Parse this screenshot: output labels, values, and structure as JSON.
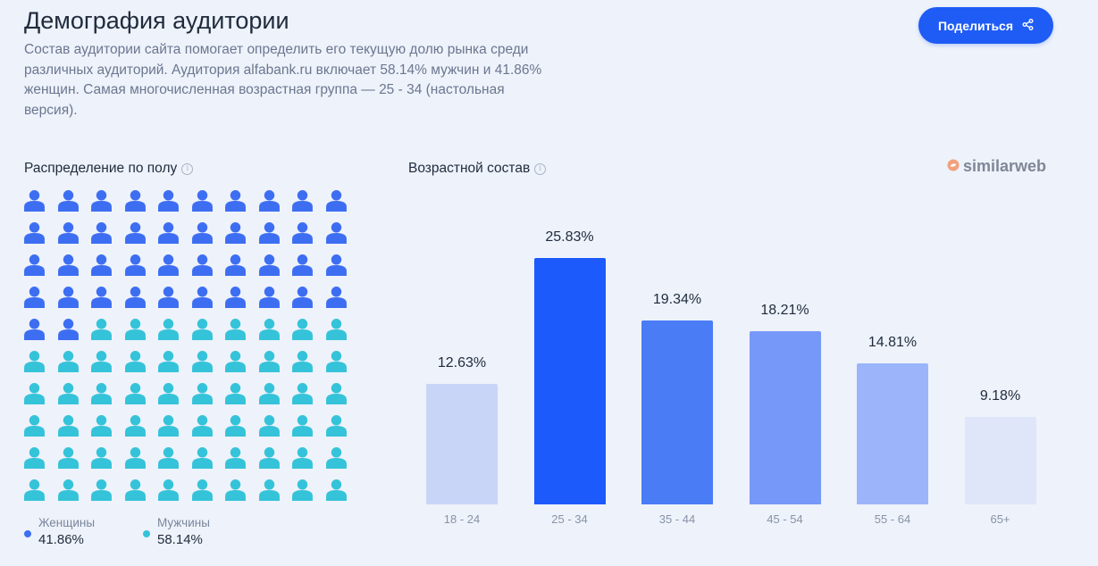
{
  "header": {
    "title": "Демография аудитории",
    "description": "Состав аудитории сайта помогает определить его текущую долю рынка среди различных аудиторий. Аудитория alfabank.ru включает 58.14% мужчин и 41.86% женщин. Самая многочисленная возрастная группа — 25 - 34 (настольная версия).",
    "share_label": "Поделиться",
    "share_icon": "share-icon"
  },
  "gender": {
    "title": "Распределение по полу",
    "info_icon": "info-icon",
    "icon_count": 100,
    "female_icons": 42,
    "legend": [
      {
        "label": "Женщины",
        "value": "41.86%",
        "color": "#3d6ef2"
      },
      {
        "label": "Мужчины",
        "value": "58.14%",
        "color": "#35c3d9"
      }
    ]
  },
  "age": {
    "title": "Возрастной состав",
    "info_icon": "info-icon",
    "logo_text": "similarweb"
  },
  "chart_data": {
    "type": "bar",
    "categories": [
      "18 - 24",
      "25 - 34",
      "35 - 44",
      "45 - 54",
      "55 - 64",
      "65+"
    ],
    "values": [
      12.63,
      25.83,
      19.34,
      18.21,
      14.81,
      9.18
    ],
    "data_labels": [
      "12.63%",
      "25.83%",
      "19.34%",
      "18.21%",
      "14.81%",
      "9.18%"
    ],
    "colors": [
      "#c9d5f7",
      "#1c5afb",
      "#4a7cf6",
      "#7698f8",
      "#9cb5fa",
      "#e0e6f9"
    ],
    "title": "Возрастной состав",
    "xlabel": "",
    "ylabel": "",
    "grid": false
  }
}
